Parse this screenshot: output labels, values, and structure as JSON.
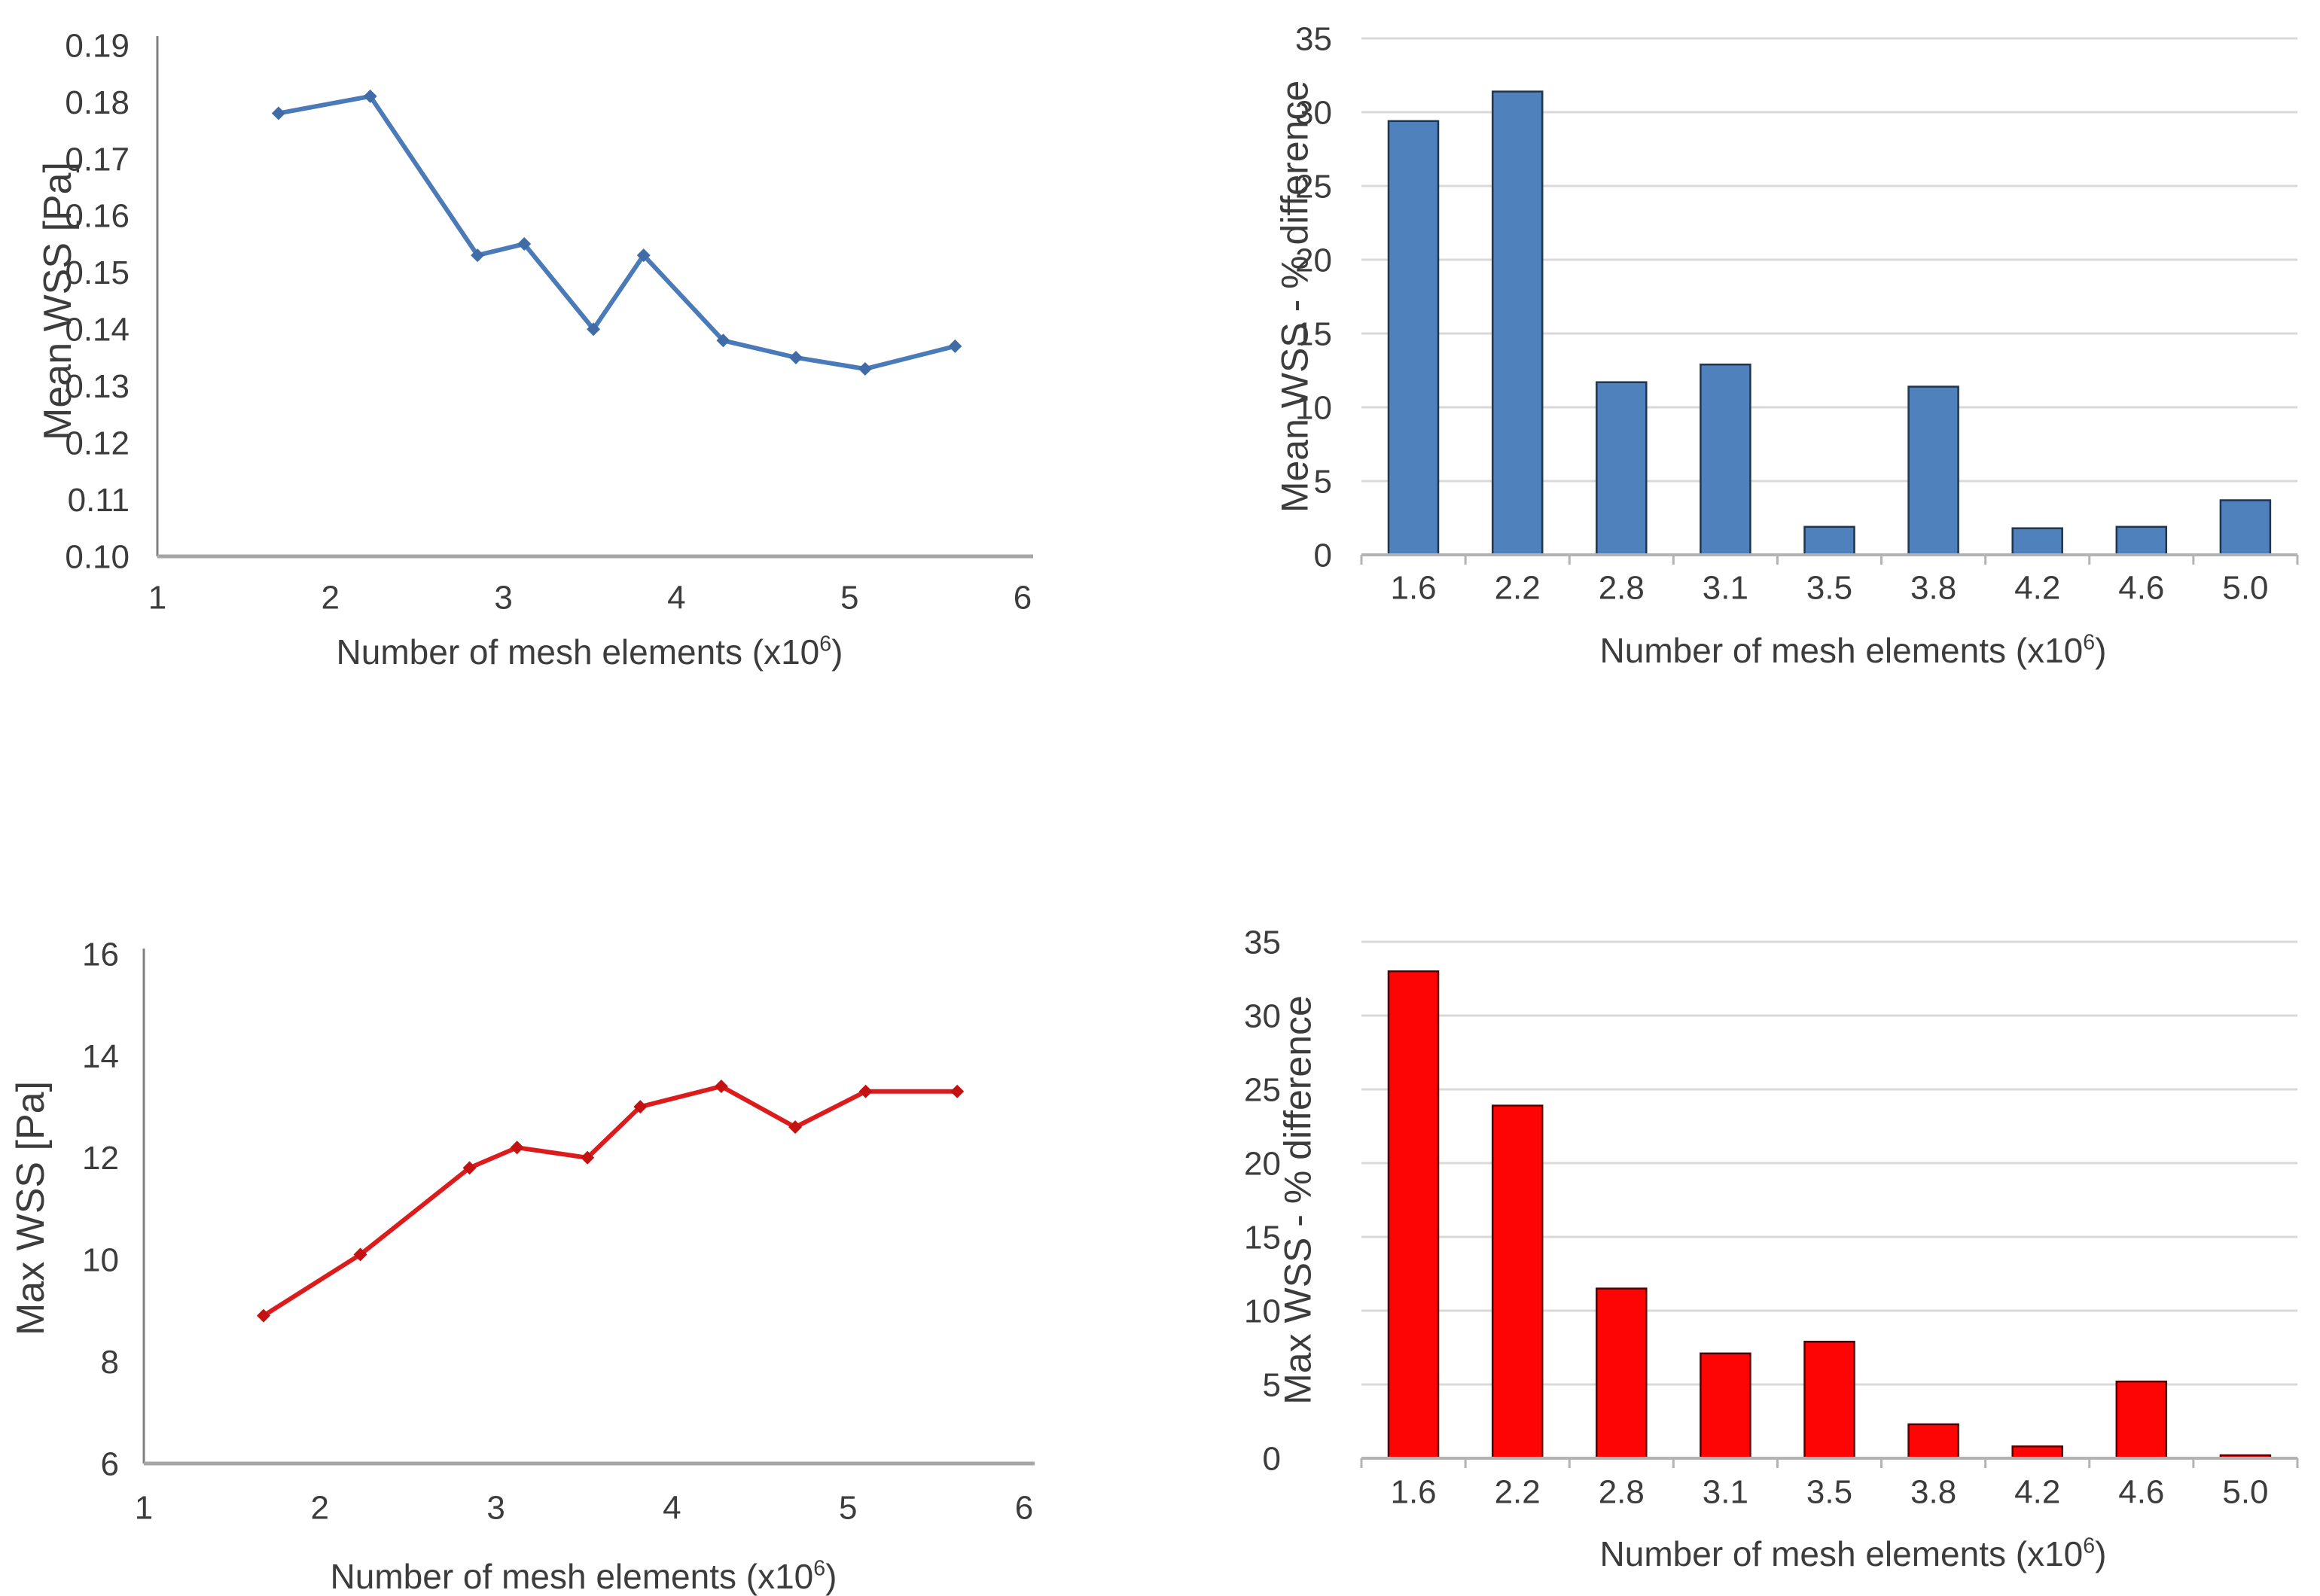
{
  "page": {
    "background": "#ffffff",
    "text_color": "#3c3c3c",
    "gridline_color": "#d9d9d9"
  },
  "chart_data": [
    {
      "id": "mean-wss-line",
      "type": "line",
      "title": "",
      "xlabel": "Number of mesh elements (x10⁶)",
      "ylabel": "Mean WSS [Pa]",
      "xlim": [
        1,
        6
      ],
      "ylim": [
        0.1,
        0.19
      ],
      "xticks": [
        1,
        2,
        3,
        4,
        5,
        6
      ],
      "yticks": [
        0.1,
        0.11,
        0.12,
        0.13,
        0.14,
        0.15,
        0.16,
        0.17,
        0.18,
        0.19
      ],
      "ytick_decimals": 2,
      "grid": false,
      "series": [
        {
          "name": "Mean WSS",
          "color": "#4a7ab8",
          "marker_color": "#3f6ca6",
          "marker": "diamond",
          "x": [
            1.7,
            2.23,
            2.85,
            3.12,
            3.52,
            3.81,
            4.27,
            4.69,
            5.09,
            5.61
          ],
          "y": [
            0.178,
            0.181,
            0.153,
            0.155,
            0.14,
            0.153,
            0.138,
            0.135,
            0.133,
            0.137
          ]
        }
      ]
    },
    {
      "id": "mean-wss-pct-diff-bar",
      "type": "bar",
      "title": "",
      "xlabel": "Number of mesh elements (x10⁶)",
      "ylabel": "Mean WSS - % difference",
      "categories": [
        "1.6",
        "2.2",
        "2.8",
        "3.1",
        "3.5",
        "3.8",
        "4.2",
        "4.6",
        "5.0"
      ],
      "values": [
        29.4,
        31.4,
        11.7,
        12.9,
        1.9,
        11.4,
        1.8,
        1.9,
        3.7
      ],
      "ylim": [
        0,
        35
      ],
      "yticks": [
        0,
        5,
        10,
        15,
        20,
        25,
        30,
        35
      ],
      "ytick_decimals": 0,
      "grid": true,
      "bar_color": "#4f81bd",
      "bar_border_color": "#1f3550"
    },
    {
      "id": "max-wss-line",
      "type": "line",
      "title": "",
      "xlabel": "Number of mesh elements (x10⁶)",
      "ylabel": "Max WSS [Pa]",
      "xlim": [
        1,
        6
      ],
      "ylim": [
        6,
        16
      ],
      "xticks": [
        1,
        2,
        3,
        4,
        5,
        6
      ],
      "yticks": [
        6,
        8,
        10,
        12,
        14,
        16
      ],
      "ytick_decimals": 0,
      "grid": false,
      "series": [
        {
          "name": "Max WSS",
          "color": "#dc1c1c",
          "marker_color": "#c41212",
          "marker": "diamond",
          "x": [
            1.68,
            2.23,
            2.85,
            3.12,
            3.52,
            3.82,
            4.28,
            4.7,
            5.1,
            5.62
          ],
          "y": [
            8.9,
            10.1,
            11.8,
            12.2,
            12.0,
            13.0,
            13.4,
            12.6,
            13.3,
            13.3
          ]
        }
      ]
    },
    {
      "id": "max-wss-pct-diff-bar",
      "type": "bar",
      "title": "",
      "xlabel": "Number of mesh elements (x10⁶)",
      "ylabel": "Max WSS - % difference",
      "categories": [
        "1.6",
        "2.2",
        "2.8",
        "3.1",
        "3.5",
        "3.8",
        "4.2",
        "4.6",
        "5.0"
      ],
      "values": [
        33.0,
        23.9,
        11.5,
        7.1,
        7.9,
        2.3,
        0.8,
        5.2,
        0.2
      ],
      "ylim": [
        0,
        35
      ],
      "yticks": [
        0,
        5,
        10,
        15,
        20,
        25,
        30,
        35
      ],
      "ytick_decimals": 0,
      "grid": true,
      "bar_color": "#fe0505",
      "bar_border_color": "#550000"
    }
  ]
}
